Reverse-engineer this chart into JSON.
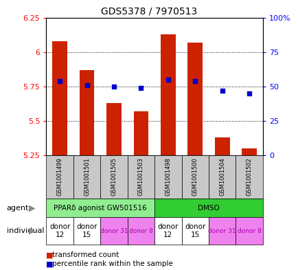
{
  "title": "GDS5378 / 7970513",
  "samples": [
    "GSM1001499",
    "GSM1001501",
    "GSM1001505",
    "GSM1001503",
    "GSM1001498",
    "GSM1001500",
    "GSM1001504",
    "GSM1001502"
  ],
  "bar_values": [
    6.08,
    5.87,
    5.63,
    5.57,
    6.13,
    6.07,
    5.38,
    5.3
  ],
  "dot_values": [
    5.79,
    5.76,
    5.75,
    5.74,
    5.8,
    5.79,
    5.72,
    5.7
  ],
  "ylim_left": [
    5.25,
    6.25
  ],
  "ylim_right": [
    0,
    100
  ],
  "yticks_left": [
    5.25,
    5.5,
    5.75,
    6.0,
    6.25
  ],
  "ytick_labels_left": [
    "5.25",
    "5.5",
    "5.75",
    "6",
    "6.25"
  ],
  "yticks_right": [
    0,
    25,
    50,
    75,
    100
  ],
  "ytick_labels_right": [
    "0",
    "25",
    "50",
    "75",
    "100%"
  ],
  "agent_info": [
    {
      "start": 0,
      "end": 4,
      "color": "#90EE90",
      "label": "PPARδ agonist GW501516"
    },
    {
      "start": 4,
      "end": 8,
      "color": "#32CD32",
      "label": "DMSO"
    }
  ],
  "individual_labels": [
    "donor\n12",
    "donor\n15",
    "donor 31",
    "donor 8",
    "donor\n12",
    "donor\n15",
    "donor 31",
    "donor 8"
  ],
  "individual_colors": [
    "#FFFFFF",
    "#FFFFFF",
    "#EE82EE",
    "#EE82EE",
    "#FFFFFF",
    "#FFFFFF",
    "#EE82EE",
    "#EE82EE"
  ],
  "individual_text_colors": [
    "#000000",
    "#000000",
    "#AA00AA",
    "#AA00AA",
    "#000000",
    "#000000",
    "#AA00AA",
    "#AA00AA"
  ],
  "bar_color": "#CC2200",
  "dot_color": "#0000CC",
  "bar_bottom": 5.25,
  "legend_bar_label": "transformed count",
  "legend_dot_label": "percentile rank within the sample",
  "grid_yticks": [
    5.5,
    5.75,
    6.0
  ],
  "bar_width": 0.55
}
